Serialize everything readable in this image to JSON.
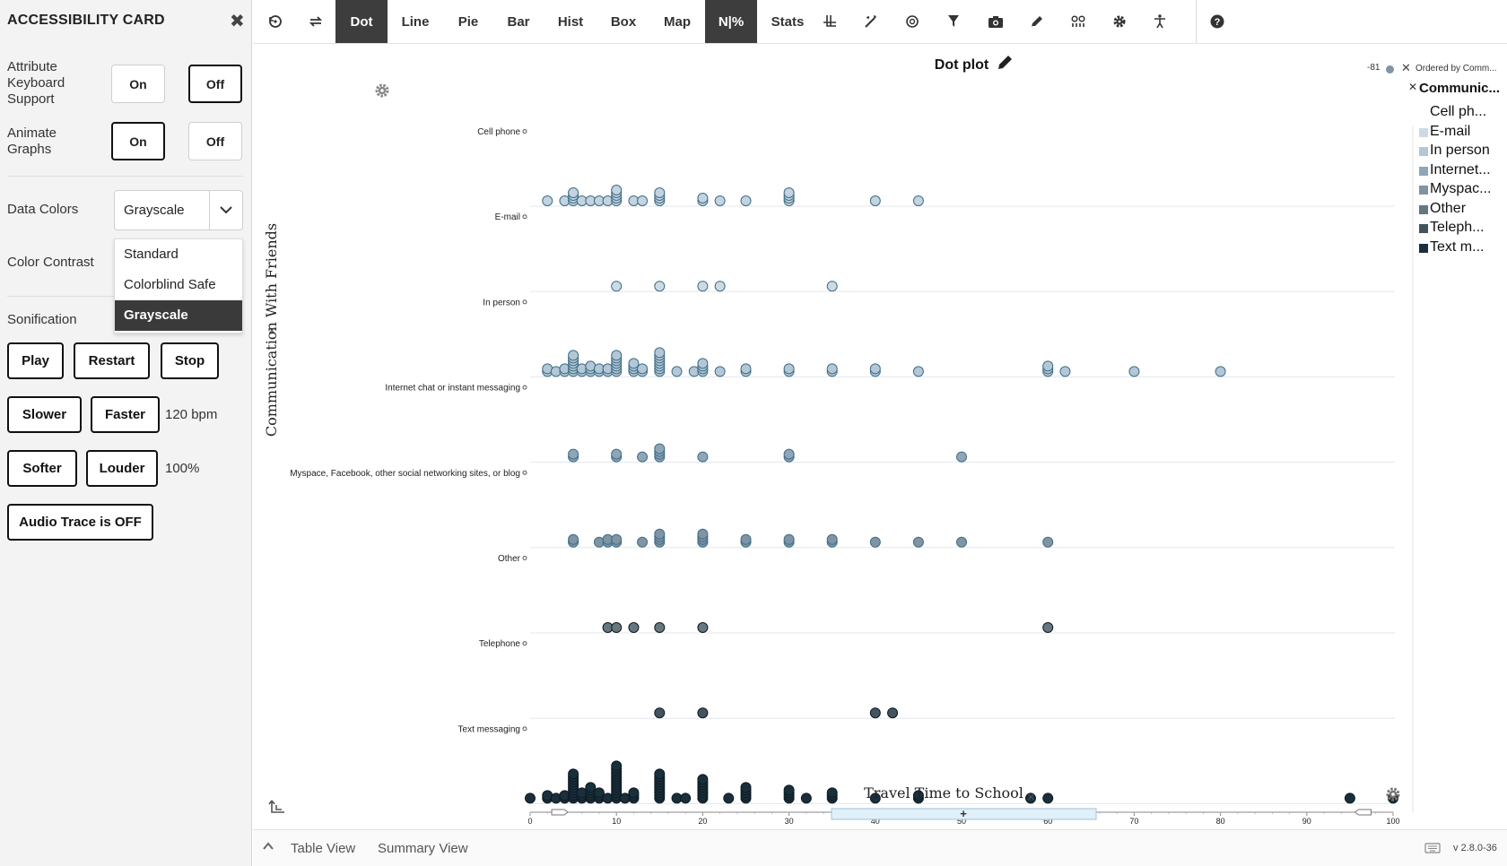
{
  "sidebar": {
    "title": "ACCESSIBILITY CARD",
    "keyboard_label": "Attribute Keyboard Support",
    "animate_label": "Animate Graphs",
    "on": "On",
    "off": "Off",
    "colors_label": "Data Colors",
    "colors_value": "Grayscale",
    "color_options": [
      "Standard",
      "Colorblind Safe",
      "Grayscale"
    ],
    "contrast_label": "Color Contrast",
    "sonification_label": "Sonification",
    "play": "Play",
    "restart": "Restart",
    "stop": "Stop",
    "slower": "Slower",
    "faster": "Faster",
    "tempo": "120 bpm",
    "softer": "Softer",
    "louder": "Louder",
    "volume": "100%",
    "audio_trace": "Audio Trace is OFF"
  },
  "toolbar": {
    "tabs": [
      "Dot",
      "Line",
      "Pie",
      "Bar",
      "Hist",
      "Box",
      "Map",
      "N|%",
      "Stats"
    ]
  },
  "graph": {
    "title": "Dot plot",
    "legend_top_value": "-81",
    "legend_order_label": "Ordered by Comm...",
    "legend_title": "Communic...",
    "legend_items": [
      "Cell ph...",
      "E-mail",
      "In person",
      "Internet...",
      "Myspac...",
      "Other",
      "Teleph...",
      "Text m..."
    ],
    "add_button": "+"
  },
  "chart_data": {
    "type": "scatter",
    "title": "Dot plot",
    "xlabel": "Travel Time to School",
    "ylabel": "Communication With Friends",
    "xlim": [
      0,
      100
    ],
    "xticks": [
      0,
      10,
      20,
      30,
      40,
      50,
      60,
      70,
      80,
      90,
      100
    ],
    "categories": [
      "Cell phone",
      "E-mail",
      "In person",
      "Internet chat or instant messaging",
      "Myspace, Facebook, other social networking sites, or blog",
      "Other",
      "Telephone",
      "Text messaging"
    ],
    "colors": [
      "#c3d3e0",
      "#ccdae5",
      "#b3c7d6",
      "#8fa6b8",
      "#7f94a4",
      "#66777f",
      "#44545c",
      "#1a2f3c"
    ],
    "series": [
      {
        "name": "Cell phone",
        "points": [
          [
            2,
            1
          ],
          [
            4,
            1
          ],
          [
            5,
            4
          ],
          [
            6,
            1
          ],
          [
            7,
            1
          ],
          [
            8,
            1
          ],
          [
            9,
            1
          ],
          [
            10,
            5
          ],
          [
            12,
            1
          ],
          [
            13,
            1
          ],
          [
            15,
            4
          ],
          [
            20,
            2
          ],
          [
            22,
            1
          ],
          [
            25,
            1
          ],
          [
            30,
            4
          ],
          [
            40,
            1
          ],
          [
            45,
            1
          ]
        ]
      },
      {
        "name": "E-mail",
        "points": [
          [
            10,
            1
          ],
          [
            15,
            1
          ],
          [
            20,
            1
          ],
          [
            22,
            1
          ],
          [
            35,
            1
          ]
        ]
      },
      {
        "name": "In person",
        "points": [
          [
            2,
            2
          ],
          [
            3,
            1
          ],
          [
            4,
            2
          ],
          [
            5,
            7
          ],
          [
            6,
            2
          ],
          [
            7,
            3
          ],
          [
            8,
            2
          ],
          [
            9,
            2
          ],
          [
            10,
            7
          ],
          [
            12,
            4
          ],
          [
            13,
            2
          ],
          [
            15,
            8
          ],
          [
            17,
            1
          ],
          [
            19,
            1
          ],
          [
            20,
            4
          ],
          [
            22,
            1
          ],
          [
            25,
            2
          ],
          [
            30,
            2
          ],
          [
            35,
            2
          ],
          [
            40,
            2
          ],
          [
            45,
            1
          ],
          [
            60,
            3
          ],
          [
            62,
            1
          ],
          [
            70,
            1
          ],
          [
            80,
            1
          ]
        ]
      },
      {
        "name": "Internet chat or instant messaging",
        "points": [
          [
            5,
            2
          ],
          [
            10,
            2
          ],
          [
            13,
            1
          ],
          [
            15,
            4
          ],
          [
            20,
            1
          ],
          [
            30,
            2
          ],
          [
            50,
            1
          ]
        ]
      },
      {
        "name": "Myspace, Facebook, other social networking sites, or blog",
        "points": [
          [
            5,
            2
          ],
          [
            8,
            1
          ],
          [
            9,
            2
          ],
          [
            10,
            2
          ],
          [
            13,
            1
          ],
          [
            15,
            4
          ],
          [
            20,
            4
          ],
          [
            25,
            2
          ],
          [
            30,
            2
          ],
          [
            35,
            2
          ],
          [
            40,
            1
          ],
          [
            45,
            1
          ],
          [
            50,
            1
          ],
          [
            60,
            1
          ]
        ]
      },
      {
        "name": "Other",
        "points": [
          [
            9,
            1
          ],
          [
            10,
            1
          ],
          [
            12,
            1
          ],
          [
            15,
            1
          ],
          [
            20,
            1
          ],
          [
            60,
            1
          ]
        ]
      },
      {
        "name": "Telephone",
        "points": [
          [
            15,
            1
          ],
          [
            20,
            1
          ],
          [
            40,
            1
          ],
          [
            42,
            1
          ]
        ]
      },
      {
        "name": "Text messaging",
        "points": [
          [
            0,
            1
          ],
          [
            2,
            2
          ],
          [
            3,
            1
          ],
          [
            4,
            2
          ],
          [
            5,
            10
          ],
          [
            6,
            3
          ],
          [
            7,
            5
          ],
          [
            8,
            3
          ],
          [
            9,
            1
          ],
          [
            10,
            13
          ],
          [
            11,
            1
          ],
          [
            12,
            3
          ],
          [
            15,
            10
          ],
          [
            17,
            1
          ],
          [
            18,
            1
          ],
          [
            20,
            8
          ],
          [
            23,
            1
          ],
          [
            25,
            5
          ],
          [
            30,
            4
          ],
          [
            32,
            1
          ],
          [
            35,
            3
          ],
          [
            40,
            1
          ],
          [
            45,
            2
          ],
          [
            58,
            1
          ],
          [
            60,
            1
          ],
          [
            95,
            1
          ],
          [
            100,
            1
          ]
        ]
      }
    ]
  },
  "bottom": {
    "table_view": "Table View",
    "summary_view": "Summary View",
    "version": "v 2.8.0-36"
  }
}
